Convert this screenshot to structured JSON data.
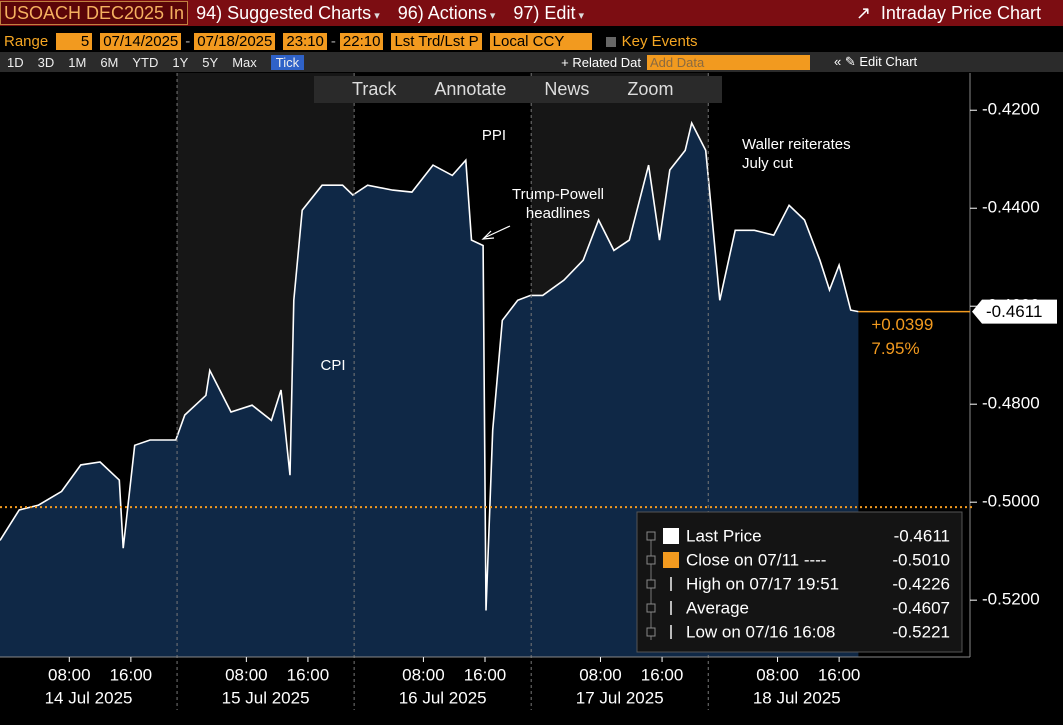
{
  "ui": {
    "security": "USOACH DEC2025 In",
    "menu": [
      "94) Suggested Charts",
      "96) Actions",
      "97) Edit"
    ],
    "chart_name": "Intraday Price Chart",
    "range_label": "Range",
    "range_days": 5,
    "start_date": "07/14/2025",
    "end_date": "07/18/2025",
    "start_time": "23:10",
    "end_time": "22:10",
    "field": "Lst Trd/Lst P",
    "currency": "Local CCY",
    "key_events": "Key Events",
    "periods": [
      "1D",
      "3D",
      "1M",
      "6M",
      "YTD",
      "1Y",
      "5Y",
      "Max",
      "Tick"
    ],
    "related": "Related Dat",
    "add_data": "Add Data",
    "edit_chart": "Edit Chart",
    "tools": [
      "Track",
      "Annotate",
      "News",
      "Zoom"
    ]
  },
  "chart_data": {
    "type": "area",
    "x": [
      "2025-07-13 23:00",
      "2025-07-14 01:30",
      "2025-07-14 04:00",
      "2025-07-14 07:00",
      "2025-07-14 09:30",
      "2025-07-14 12:00",
      "2025-07-14 14:30",
      "2025-07-14 15:00",
      "2025-07-14 16:30",
      "2025-07-14 18:30",
      "2025-07-14 21:50",
      "2025-07-15 00:00",
      "2025-07-15 02:45",
      "2025-07-15 03:15",
      "2025-07-15 06:00",
      "2025-07-15 08:45",
      "2025-07-15 11:15",
      "2025-07-15 12:30",
      "2025-07-15 13:40",
      "2025-07-15 14:10",
      "2025-07-15 15:15",
      "2025-07-15 17:50",
      "2025-07-15 20:30",
      "2025-07-15 21:50",
      "2025-07-16 00:45",
      "2025-07-16 04:00",
      "2025-07-16 06:30",
      "2025-07-16 09:15",
      "2025-07-16 11:45",
      "2025-07-16 13:30",
      "2025-07-16 14:15",
      "2025-07-16 15:45",
      "2025-07-16 16:08",
      "2025-07-16 17:00",
      "2025-07-16 18:15",
      "2025-07-16 20:15",
      "2025-07-16 21:55",
      "2025-07-17 00:30",
      "2025-07-17 03:15",
      "2025-07-17 05:45",
      "2025-07-17 07:45",
      "2025-07-17 09:45",
      "2025-07-17 11:45",
      "2025-07-17 14:15",
      "2025-07-17 15:40",
      "2025-07-17 17:00",
      "2025-07-17 19:00",
      "2025-07-17 19:51",
      "2025-07-17 21:40",
      "2025-07-17 21:55",
      "2025-07-18 00:30",
      "2025-07-18 02:30",
      "2025-07-18 05:00",
      "2025-07-18 07:30",
      "2025-07-18 09:30",
      "2025-07-18 11:30",
      "2025-07-18 13:30",
      "2025-07-18 14:45",
      "2025-07-18 16:00",
      "2025-07-18 17:30",
      "2025-07-18 18:30"
    ],
    "series": [
      {
        "name": "Last Price",
        "color": "#ffffff",
        "fill": "#0f2846",
        "values": [
          -0.5078,
          -0.5016,
          -0.5006,
          -0.4978,
          -0.4924,
          -0.4918,
          -0.4955,
          -0.5094,
          -0.4884,
          -0.4873,
          -0.4873,
          -0.4822,
          -0.4782,
          -0.4731,
          -0.4816,
          -0.4802,
          -0.4833,
          -0.4771,
          -0.4945,
          -0.4588,
          -0.4404,
          -0.4353,
          -0.4353,
          -0.4373,
          -0.4353,
          -0.4363,
          -0.4367,
          -0.4312,
          -0.4333,
          -0.4302,
          -0.4465,
          -0.4476,
          -0.5221,
          -0.4853,
          -0.4629,
          -0.4588,
          -0.4578,
          -0.4578,
          -0.4547,
          -0.4506,
          -0.4424,
          -0.4486,
          -0.4465,
          -0.4312,
          -0.4465,
          -0.4322,
          -0.4282,
          -0.4226,
          -0.4282,
          -0.4322,
          -0.4588,
          -0.4445,
          -0.4445,
          -0.4455,
          -0.4394,
          -0.4424,
          -0.4506,
          -0.4567,
          -0.4516,
          -0.4608,
          -0.4611
        ]
      }
    ],
    "xlim": [
      "2025-07-13 23:00",
      "2025-07-19 10:00"
    ],
    "xticks": [
      {
        "value": "2025-07-14 08:00",
        "label": "08:00"
      },
      {
        "value": "2025-07-14 16:00",
        "label": "16:00"
      },
      {
        "value": "2025-07-15 08:00",
        "label": "08:00"
      },
      {
        "value": "2025-07-15 16:00",
        "label": "16:00"
      },
      {
        "value": "2025-07-16 08:00",
        "label": "08:00"
      },
      {
        "value": "2025-07-16 16:00",
        "label": "16:00"
      },
      {
        "value": "2025-07-17 08:00",
        "label": "08:00"
      },
      {
        "value": "2025-07-17 16:00",
        "label": "16:00"
      },
      {
        "value": "2025-07-18 08:00",
        "label": "08:00"
      },
      {
        "value": "2025-07-18 16:00",
        "label": "16:00"
      }
    ],
    "day_labels": [
      {
        "value": "2025-07-14",
        "label": "14 Jul 2025"
      },
      {
        "value": "2025-07-15",
        "label": "15 Jul 2025"
      },
      {
        "value": "2025-07-16",
        "label": "16 Jul 2025"
      },
      {
        "value": "2025-07-17",
        "label": "17 Jul 2025"
      },
      {
        "value": "2025-07-18",
        "label": "18 Jul 2025"
      }
    ],
    "ylim": [
      -0.5316,
      -0.4124
    ],
    "yticks": [
      {
        "value": -0.42,
        "label": "-0.4200"
      },
      {
        "value": -0.44,
        "label": "-0.4400"
      },
      {
        "value": -0.46,
        "label": "-0.4600"
      },
      {
        "value": -0.48,
        "label": "-0.4800"
      },
      {
        "value": -0.5,
        "label": "-0.5000"
      },
      {
        "value": -0.52,
        "label": "-0.5200"
      }
    ],
    "reference_line": {
      "value": -0.501,
      "color": "#f29a1f"
    },
    "last_price": {
      "value": -0.4611,
      "label": "-0.4611",
      "color": "#f29a1f"
    },
    "change": {
      "value": 0.0399,
      "label": "+0.0399"
    },
    "change_pct": {
      "value": 7.95,
      "label": "7.95%"
    },
    "annotations": [
      {
        "lines": [
          "CPI"
        ]
      },
      {
        "lines": [
          "PPI"
        ]
      },
      {
        "lines": [
          "Trump-Powell",
          "headlines"
        ]
      },
      {
        "lines": [
          "Waller reiterates",
          "July cut"
        ]
      }
    ],
    "stats": [
      {
        "name": "Last Price",
        "color": "#ffffff",
        "value": -0.4611,
        "label": "-0.4611"
      },
      {
        "name": "Close on 07/11 ----",
        "color": "#f29a1f",
        "value": -0.501,
        "label": "-0.5010"
      },
      {
        "name": "High on 07/17 19:51",
        "value": -0.4226,
        "label": "-0.4226"
      },
      {
        "name": "Average",
        "value": -0.4607,
        "label": "-0.4607"
      },
      {
        "name": "Low on 07/16 16:08",
        "value": -0.5221,
        "label": "-0.5221"
      }
    ]
  }
}
